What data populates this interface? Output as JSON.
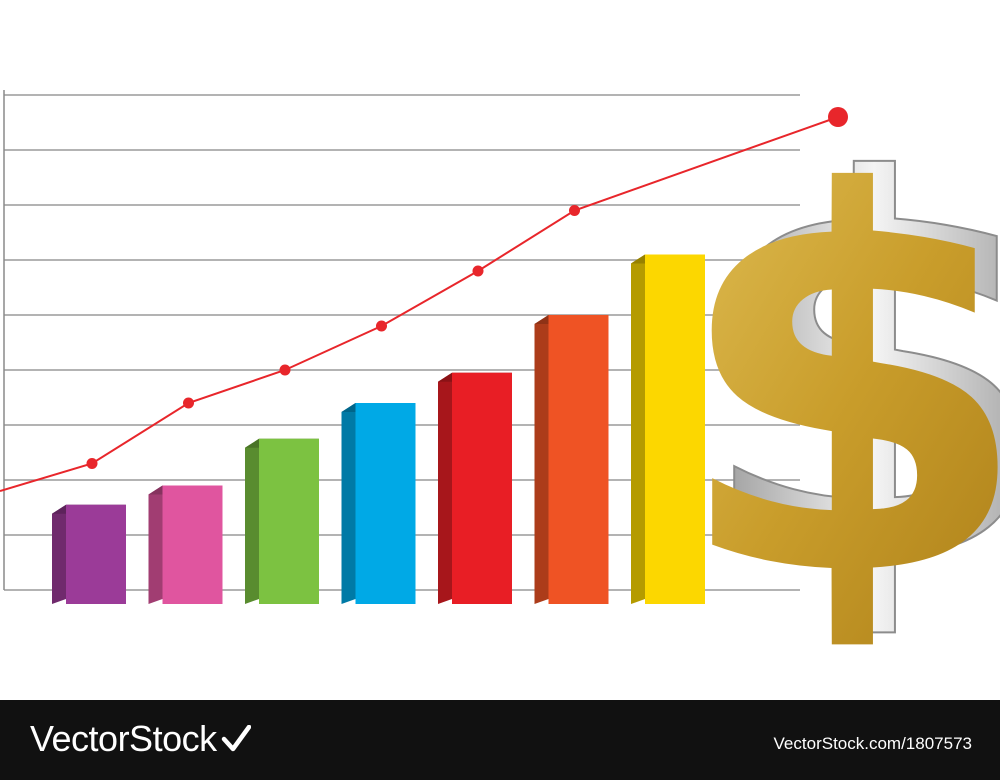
{
  "chart_data": {
    "type": "bar",
    "title": "",
    "xlabel": "",
    "ylabel": "",
    "ylim": [
      0,
      9
    ],
    "grid": true,
    "categories": [
      "",
      "",
      "",
      "",
      "",
      "",
      ""
    ],
    "bar_colors": [
      "#9b3b98",
      "#e0559f",
      "#7cc241",
      "#00a9e6",
      "#e81e25",
      "#ef5324",
      "#fcd700"
    ],
    "series": [
      {
        "values": [
          1.55,
          1.9,
          2.75,
          3.4,
          3.95,
          5.0,
          6.1
        ]
      },
      {
        "type": "line",
        "color": "#e8262b",
        "x": [
          0,
          1,
          2,
          3,
          4,
          5,
          6,
          7
        ],
        "values": [
          1.8,
          2.3,
          3.4,
          4.0,
          4.8,
          5.8,
          6.9,
          8.6
        ]
      }
    ]
  },
  "decoration": {
    "icon": "dollar-sign-icon",
    "glyph": "$",
    "colors": {
      "gold": "#c8a02a",
      "silver": "#bdbdbd"
    }
  },
  "footer": {
    "brand": "VectorStock",
    "image_id": "VectorStock.com/1807573"
  }
}
